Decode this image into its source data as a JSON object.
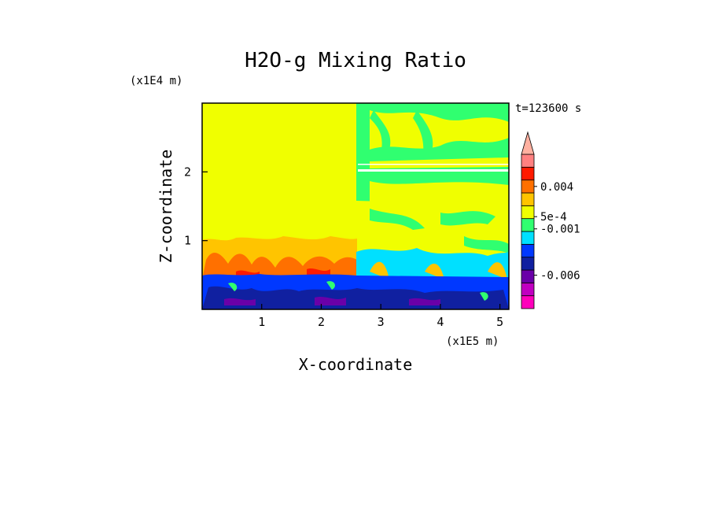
{
  "chart_data": {
    "type": "heatmap",
    "title": "H2O-g Mixing Ratio",
    "xlabel": "X-coordinate",
    "ylabel": "Z-coordinate",
    "x_unit": "(x1E5 m)",
    "y_unit": "(x1E4 m)",
    "time_label": "t=123600 s",
    "xlim": [
      0,
      5.15
    ],
    "ylim": [
      0,
      3.0
    ],
    "x_ticks": [
      1,
      2,
      3,
      4,
      5
    ],
    "y_ticks": [
      1,
      2
    ],
    "colorbar": {
      "colors": [
        "#ff00bb",
        "#c000c0",
        "#6a00a8",
        "#1020a0",
        "#0038ff",
        "#00e0ff",
        "#30ff70",
        "#f0ff00",
        "#ffc400",
        "#ff7000",
        "#ff1a00",
        "#ff8080"
      ],
      "extend_top": true,
      "labels": [
        {
          "text": "0.004",
          "value": 0.004
        },
        {
          "text": "5e-4",
          "value": 0.0005
        },
        {
          "text": "-0.001",
          "value": -0.001
        },
        {
          "text": "-0.006",
          "value": -0.006
        }
      ]
    },
    "regions": [
      {
        "description_key": "upper",
        "z_range": [
          0.9,
          3.0
        ],
        "x_range": [
          0,
          2.6
        ],
        "level": "yellow"
      },
      {
        "description_key": "upper-right",
        "z_range": [
          1.3,
          3.0
        ],
        "x_range": [
          2.6,
          5.15
        ],
        "level": "green-yellow"
      },
      {
        "description_key": "mid",
        "z_range": [
          0.5,
          1.0
        ],
        "x_range": [
          0,
          2.6
        ],
        "level": "orange-red"
      },
      {
        "description_key": "bottom",
        "z_range": [
          0,
          0.5
        ],
        "x_range": [
          0,
          5.15
        ],
        "level": "blue-purple"
      }
    ]
  }
}
